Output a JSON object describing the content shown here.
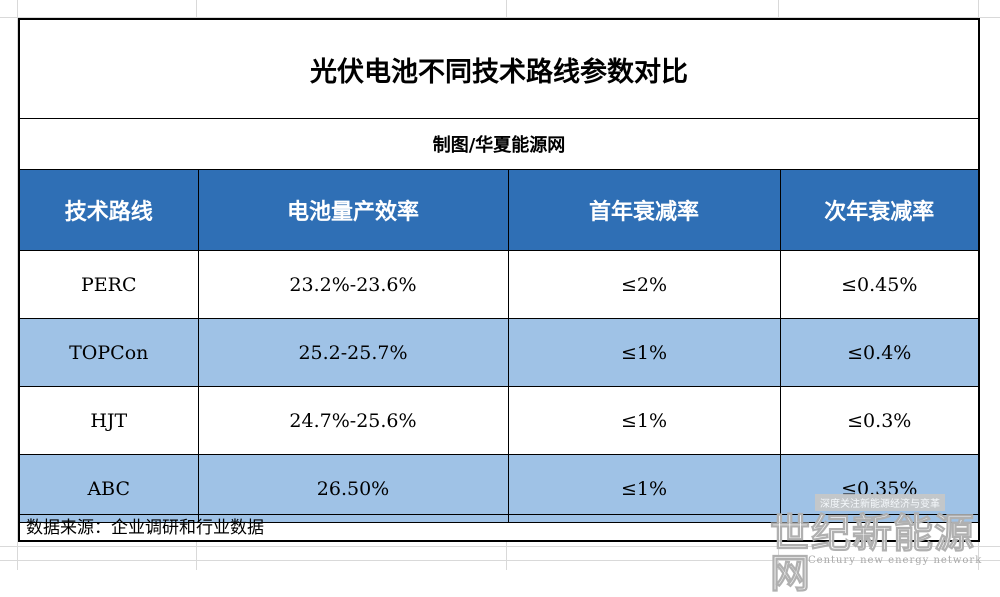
{
  "title": "光伏电池不同技术路线参数对比",
  "credit": "制图/华夏能源网",
  "table": {
    "headers": [
      "技术路线",
      "电池量产效率",
      "首年衰减率",
      "次年衰减率"
    ],
    "rows": [
      [
        "PERC",
        "23.2%-23.6%",
        "≤2%",
        "≤0.45%"
      ],
      [
        "TOPCon",
        "25.2-25.7%",
        "≤1%",
        "≤0.4%"
      ],
      [
        "HJT",
        "24.7%-25.6%",
        "≤1%",
        "≤0.3%"
      ],
      [
        "ABC",
        "26.50%",
        "≤1%",
        "≤0.35%"
      ]
    ]
  },
  "source": "数据来源：企业调研和行业数据",
  "watermark": {
    "tagline": "深度关注新能源经济与变革",
    "logo": "世纪新能源网",
    "sub": "Century new energy network"
  },
  "colors": {
    "header_bg": "#2f6fb5",
    "alt_row_bg": "#9fc2e6",
    "header_text": "#ffffff"
  }
}
